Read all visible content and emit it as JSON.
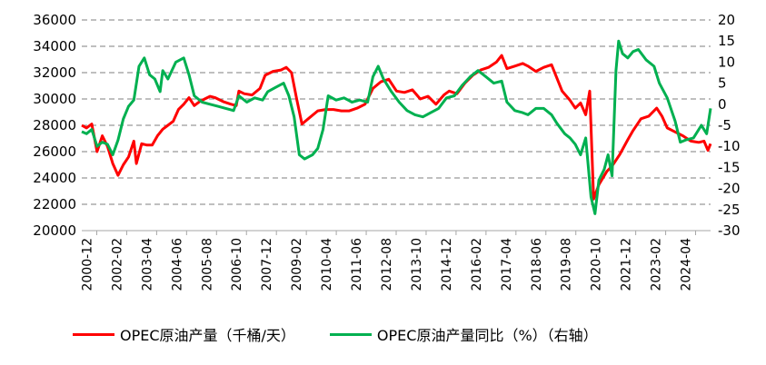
{
  "colors": {
    "production": "#ff0000",
    "yoy": "#00b050",
    "grid": "#7f7f7f"
  },
  "chart_data": {
    "type": "line",
    "title": "",
    "x_ticks": [
      "2000-12",
      "2002-02",
      "2003-04",
      "2004-06",
      "2005-08",
      "2006-10",
      "2007-12",
      "2009-02",
      "2010-04",
      "2011-06",
      "2012-08",
      "2013-10",
      "2014-12",
      "2016-02",
      "2017-04",
      "2018-06",
      "2019-08",
      "2020-10",
      "2021-12",
      "2023-02",
      "2024-04"
    ],
    "y_left": {
      "min": 20000,
      "max": 36000,
      "step": 2000,
      "ticks": [
        "20000",
        "22000",
        "24000",
        "26000",
        "28000",
        "30000",
        "32000",
        "34000",
        "36000"
      ]
    },
    "y_right": {
      "min": -30,
      "max": 20,
      "step": 5,
      "ticks": [
        "-30",
        "-25",
        "-20",
        "-15",
        "-10",
        "-5",
        "0",
        "5",
        "10",
        "15",
        "20"
      ]
    },
    "grid": true,
    "legend_position": "bottom",
    "series": [
      {
        "name": "OPEC原油产量（千桶/天）",
        "axis": "left",
        "color": "#ff0000",
        "points": [
          [
            2000.92,
            28000
          ],
          [
            2001.1,
            27800
          ],
          [
            2001.3,
            28100
          ],
          [
            2001.5,
            26000
          ],
          [
            2001.7,
            27200
          ],
          [
            2001.9,
            26400
          ],
          [
            2002.1,
            25100
          ],
          [
            2002.3,
            24200
          ],
          [
            2002.5,
            25000
          ],
          [
            2002.7,
            25600
          ],
          [
            2002.9,
            26800
          ],
          [
            2003.0,
            25100
          ],
          [
            2003.2,
            26600
          ],
          [
            2003.4,
            26500
          ],
          [
            2003.6,
            26500
          ],
          [
            2003.8,
            27200
          ],
          [
            2004.0,
            27700
          ],
          [
            2004.2,
            28000
          ],
          [
            2004.4,
            28300
          ],
          [
            2004.6,
            29200
          ],
          [
            2004.8,
            29600
          ],
          [
            2005.0,
            30100
          ],
          [
            2005.2,
            29500
          ],
          [
            2005.4,
            29800
          ],
          [
            2005.6,
            30000
          ],
          [
            2005.8,
            30200
          ],
          [
            2006.0,
            30100
          ],
          [
            2006.3,
            29800
          ],
          [
            2006.6,
            29600
          ],
          [
            2006.8,
            29500
          ],
          [
            2006.9,
            30600
          ],
          [
            2007.1,
            30400
          ],
          [
            2007.4,
            30300
          ],
          [
            2007.7,
            30800
          ],
          [
            2007.9,
            31800
          ],
          [
            2008.2,
            32100
          ],
          [
            2008.5,
            32200
          ],
          [
            2008.7,
            32400
          ],
          [
            2008.9,
            32000
          ],
          [
            2009.1,
            30000
          ],
          [
            2009.3,
            28100
          ],
          [
            2009.6,
            28600
          ],
          [
            2009.9,
            29100
          ],
          [
            2010.2,
            29200
          ],
          [
            2010.5,
            29200
          ],
          [
            2010.8,
            29100
          ],
          [
            2011.1,
            29100
          ],
          [
            2011.4,
            29300
          ],
          [
            2011.7,
            29600
          ],
          [
            2012.0,
            30800
          ],
          [
            2012.3,
            31300
          ],
          [
            2012.6,
            31500
          ],
          [
            2012.9,
            30600
          ],
          [
            2013.2,
            30500
          ],
          [
            2013.5,
            30700
          ],
          [
            2013.8,
            30000
          ],
          [
            2014.1,
            30200
          ],
          [
            2014.4,
            29600
          ],
          [
            2014.7,
            30300
          ],
          [
            2014.9,
            30600
          ],
          [
            2015.2,
            30400
          ],
          [
            2015.5,
            31200
          ],
          [
            2015.8,
            31800
          ],
          [
            2016.1,
            32200
          ],
          [
            2016.4,
            32400
          ],
          [
            2016.7,
            32800
          ],
          [
            2016.9,
            33300
          ],
          [
            2017.1,
            32300
          ],
          [
            2017.4,
            32500
          ],
          [
            2017.7,
            32700
          ],
          [
            2017.9,
            32500
          ],
          [
            2018.2,
            32100
          ],
          [
            2018.5,
            32400
          ],
          [
            2018.8,
            32600
          ],
          [
            2019.0,
            31600
          ],
          [
            2019.2,
            30600
          ],
          [
            2019.5,
            29900
          ],
          [
            2019.7,
            29300
          ],
          [
            2019.9,
            29700
          ],
          [
            2020.1,
            28800
          ],
          [
            2020.25,
            30600
          ],
          [
            2020.4,
            22400
          ],
          [
            2020.6,
            23500
          ],
          [
            2020.9,
            24500
          ],
          [
            2021.1,
            24900
          ],
          [
            2021.4,
            25800
          ],
          [
            2021.7,
            26900
          ],
          [
            2021.9,
            27600
          ],
          [
            2022.2,
            28500
          ],
          [
            2022.5,
            28700
          ],
          [
            2022.8,
            29300
          ],
          [
            2023.0,
            28700
          ],
          [
            2023.2,
            27800
          ],
          [
            2023.5,
            27500
          ],
          [
            2023.8,
            27200
          ],
          [
            2024.1,
            26800
          ],
          [
            2024.4,
            26700
          ],
          [
            2024.6,
            26800
          ],
          [
            2024.75,
            26100
          ],
          [
            2024.85,
            26600
          ]
        ]
      },
      {
        "name": "OPEC原油产量同比（%）（右轴）",
        "axis": "right",
        "color": "#00b050",
        "points": [
          [
            2000.92,
            -6.5
          ],
          [
            2001.1,
            -7.0
          ],
          [
            2001.3,
            -6.0
          ],
          [
            2001.5,
            -10.0
          ],
          [
            2001.7,
            -9.0
          ],
          [
            2001.9,
            -9.5
          ],
          [
            2002.1,
            -12.0
          ],
          [
            2002.3,
            -8.5
          ],
          [
            2002.5,
            -3.5
          ],
          [
            2002.7,
            -0.5
          ],
          [
            2002.9,
            1.0
          ],
          [
            2003.1,
            9.0
          ],
          [
            2003.3,
            11.0
          ],
          [
            2003.5,
            7.0
          ],
          [
            2003.7,
            6.0
          ],
          [
            2003.9,
            3.0
          ],
          [
            2004.0,
            8.0
          ],
          [
            2004.2,
            6.0
          ],
          [
            2004.5,
            10.0
          ],
          [
            2004.8,
            11.0
          ],
          [
            2005.0,
            7.0
          ],
          [
            2005.2,
            2.0
          ],
          [
            2005.5,
            0.5
          ],
          [
            2005.8,
            0.0
          ],
          [
            2006.1,
            -0.5
          ],
          [
            2006.4,
            -1.0
          ],
          [
            2006.7,
            -1.5
          ],
          [
            2006.9,
            2.0
          ],
          [
            2007.2,
            0.5
          ],
          [
            2007.5,
            1.5
          ],
          [
            2007.8,
            1.0
          ],
          [
            2008.0,
            3.0
          ],
          [
            2008.3,
            4.0
          ],
          [
            2008.6,
            5.0
          ],
          [
            2008.8,
            2.0
          ],
          [
            2009.0,
            -3.0
          ],
          [
            2009.2,
            -12.0
          ],
          [
            2009.4,
            -13.0
          ],
          [
            2009.7,
            -12.0
          ],
          [
            2009.9,
            -10.5
          ],
          [
            2010.1,
            -6.0
          ],
          [
            2010.3,
            2.0
          ],
          [
            2010.6,
            1.0
          ],
          [
            2010.9,
            1.5
          ],
          [
            2011.2,
            0.5
          ],
          [
            2011.5,
            1.0
          ],
          [
            2011.8,
            0.5
          ],
          [
            2012.0,
            6.5
          ],
          [
            2012.2,
            9.0
          ],
          [
            2012.4,
            6.0
          ],
          [
            2012.7,
            3.0
          ],
          [
            2013.0,
            0.5
          ],
          [
            2013.3,
            -1.5
          ],
          [
            2013.6,
            -2.5
          ],
          [
            2013.9,
            -3.0
          ],
          [
            2014.2,
            -2.0
          ],
          [
            2014.5,
            -1.0
          ],
          [
            2014.8,
            1.5
          ],
          [
            2015.1,
            2.0
          ],
          [
            2015.4,
            4.5
          ],
          [
            2015.7,
            6.5
          ],
          [
            2016.0,
            8.0
          ],
          [
            2016.3,
            6.5
          ],
          [
            2016.6,
            5.0
          ],
          [
            2016.9,
            5.5
          ],
          [
            2017.1,
            0.5
          ],
          [
            2017.4,
            -1.5
          ],
          [
            2017.7,
            -2.0
          ],
          [
            2017.9,
            -2.5
          ],
          [
            2018.2,
            -1.0
          ],
          [
            2018.5,
            -1.0
          ],
          [
            2018.8,
            -2.5
          ],
          [
            2019.0,
            -4.5
          ],
          [
            2019.3,
            -7.0
          ],
          [
            2019.5,
            -8.0
          ],
          [
            2019.7,
            -9.5
          ],
          [
            2019.9,
            -12.0
          ],
          [
            2020.1,
            -8.0
          ],
          [
            2020.3,
            -22.0
          ],
          [
            2020.45,
            -26.0
          ],
          [
            2020.6,
            -18.0
          ],
          [
            2020.8,
            -15.5
          ],
          [
            2020.95,
            -12.0
          ],
          [
            2021.1,
            -17.0
          ],
          [
            2021.25,
            8.0
          ],
          [
            2021.35,
            15.0
          ],
          [
            2021.5,
            12.0
          ],
          [
            2021.7,
            11.0
          ],
          [
            2021.9,
            12.5
          ],
          [
            2022.1,
            13.0
          ],
          [
            2022.4,
            10.5
          ],
          [
            2022.7,
            9.0
          ],
          [
            2022.9,
            5.0
          ],
          [
            2023.2,
            1.5
          ],
          [
            2023.5,
            -4.0
          ],
          [
            2023.7,
            -9.0
          ],
          [
            2023.9,
            -8.5
          ],
          [
            2024.2,
            -8.0
          ],
          [
            2024.5,
            -5.0
          ],
          [
            2024.7,
            -7.0
          ],
          [
            2024.85,
            -1.0
          ]
        ]
      }
    ]
  }
}
